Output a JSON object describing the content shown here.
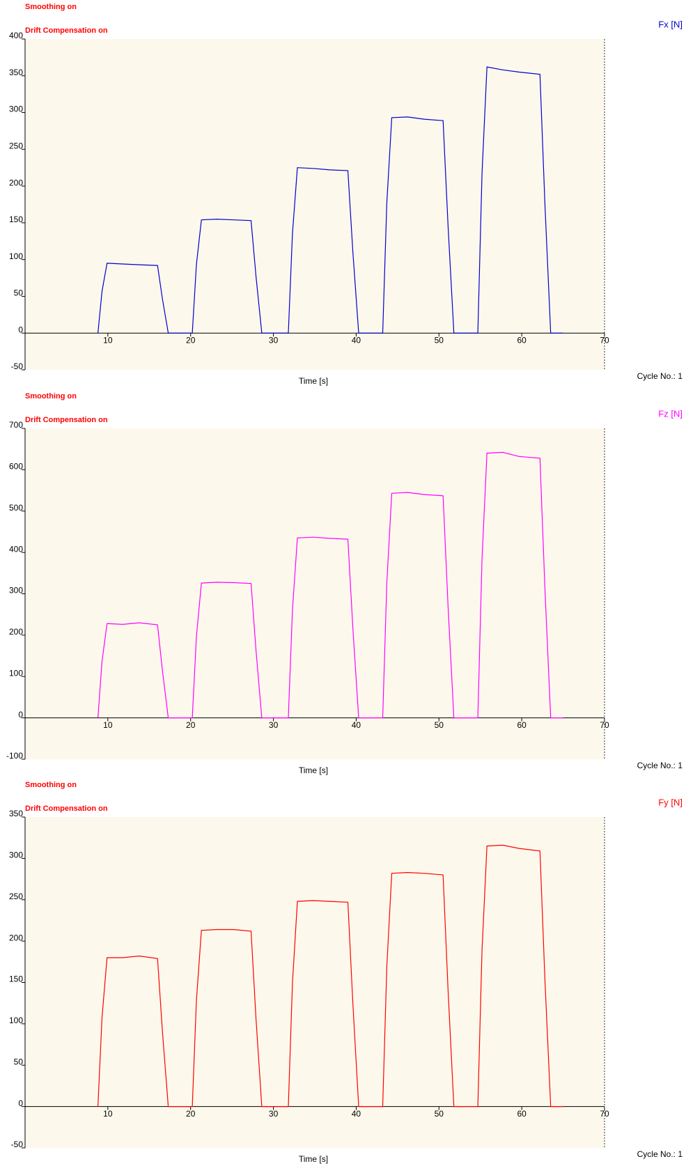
{
  "chart_data": [
    {
      "type": "line",
      "annotations": [
        "Smoothing on",
        "Drift Compensation on"
      ],
      "x_label": "Time [s]",
      "cycle_label": "Cycle No.: 1",
      "x": [
        8.8,
        9.3,
        9.9,
        11.8,
        13.8,
        16.0,
        16.6,
        17.3,
        20.2,
        20.7,
        21.3,
        23.2,
        25.2,
        27.3,
        27.9,
        28.6,
        31.8,
        32.3,
        32.9,
        34.8,
        36.8,
        39.0,
        39.6,
        40.3,
        43.2,
        43.7,
        44.3,
        46.2,
        48.2,
        50.5,
        51.1,
        51.8,
        54.7,
        55.2,
        55.8,
        57.7,
        59.7,
        62.2,
        62.8,
        63.5,
        65
      ],
      "series": [
        {
          "name": "Fx [N]",
          "color": "#0000cc",
          "values": [
            0,
            57,
            95,
            94,
            93,
            92,
            46,
            0,
            0,
            93,
            154,
            155,
            154,
            153,
            77,
            0,
            0,
            135,
            225,
            224,
            222,
            221,
            110,
            0,
            0,
            177,
            293,
            294,
            291,
            289,
            145,
            0,
            0,
            217,
            362,
            358,
            355,
            352,
            176,
            0,
            0
          ]
        }
      ],
      "xlim": [
        0,
        70
      ],
      "xticks": [
        10,
        20,
        30,
        40,
        50,
        60,
        70
      ],
      "ylim": [
        -50,
        400
      ],
      "yticks": [
        -50,
        0,
        50,
        100,
        150,
        200,
        250,
        300,
        350,
        400
      ]
    },
    {
      "type": "line",
      "annotations": [
        "Smoothing on",
        "Drift Compensation on"
      ],
      "x_label": "Time [s]",
      "cycle_label": "Cycle No.: 1",
      "x": [
        8.8,
        9.3,
        9.9,
        11.8,
        13.8,
        16.0,
        16.6,
        17.3,
        20.2,
        20.7,
        21.3,
        23.2,
        25.2,
        27.3,
        27.9,
        28.6,
        31.8,
        32.3,
        32.9,
        34.8,
        36.8,
        39.0,
        39.6,
        40.3,
        43.2,
        43.7,
        44.3,
        46.2,
        48.2,
        50.5,
        51.1,
        51.8,
        54.7,
        55.2,
        55.8,
        57.7,
        59.7,
        62.2,
        62.8,
        63.5,
        65
      ],
      "series": [
        {
          "name": "Fz [N]",
          "color": "#ff00ff",
          "values": [
            0,
            137,
            228,
            226,
            230,
            225,
            113,
            0,
            0,
            196,
            326,
            328,
            327,
            325,
            163,
            0,
            0,
            261,
            435,
            437,
            434,
            432,
            216,
            0,
            0,
            326,
            543,
            545,
            540,
            537,
            268,
            0,
            0,
            384,
            640,
            642,
            632,
            628,
            314,
            0,
            0
          ]
        }
      ],
      "xlim": [
        0,
        70
      ],
      "xticks": [
        10,
        20,
        30,
        40,
        50,
        60,
        70
      ],
      "ylim": [
        -100,
        700
      ],
      "yticks": [
        -100,
        0,
        100,
        200,
        300,
        400,
        500,
        600,
        700
      ]
    },
    {
      "type": "line",
      "annotations": [
        "Smoothing on",
        "Drift Compensation on"
      ],
      "x_label": "Time [s]",
      "cycle_label": "Cycle No.: 1",
      "x": [
        8.8,
        9.3,
        9.9,
        11.8,
        13.8,
        16.0,
        16.6,
        17.3,
        20.2,
        20.7,
        21.3,
        23.2,
        25.2,
        27.3,
        27.9,
        28.6,
        31.8,
        32.3,
        32.9,
        34.8,
        36.8,
        39.0,
        39.6,
        40.3,
        43.2,
        43.7,
        44.3,
        46.2,
        48.2,
        50.5,
        51.1,
        51.8,
        54.7,
        55.2,
        55.8,
        57.7,
        59.7,
        62.2,
        62.8,
        63.5,
        65
      ],
      "series": [
        {
          "name": "Fy [N]",
          "color": "#ff0000",
          "values": [
            0,
            108,
            180,
            180,
            182,
            179,
            90,
            0,
            0,
            128,
            213,
            214,
            214,
            212,
            106,
            0,
            0,
            149,
            248,
            249,
            248,
            247,
            124,
            0,
            0,
            169,
            282,
            283,
            282,
            280,
            140,
            0,
            0,
            189,
            315,
            316,
            312,
            309,
            154,
            0,
            0
          ]
        }
      ],
      "xlim": [
        0,
        70
      ],
      "xticks": [
        10,
        20,
        30,
        40,
        50,
        60,
        70
      ],
      "ylim": [
        -50,
        350
      ],
      "yticks": [
        -50,
        0,
        50,
        100,
        150,
        200,
        250,
        300,
        350
      ]
    }
  ]
}
